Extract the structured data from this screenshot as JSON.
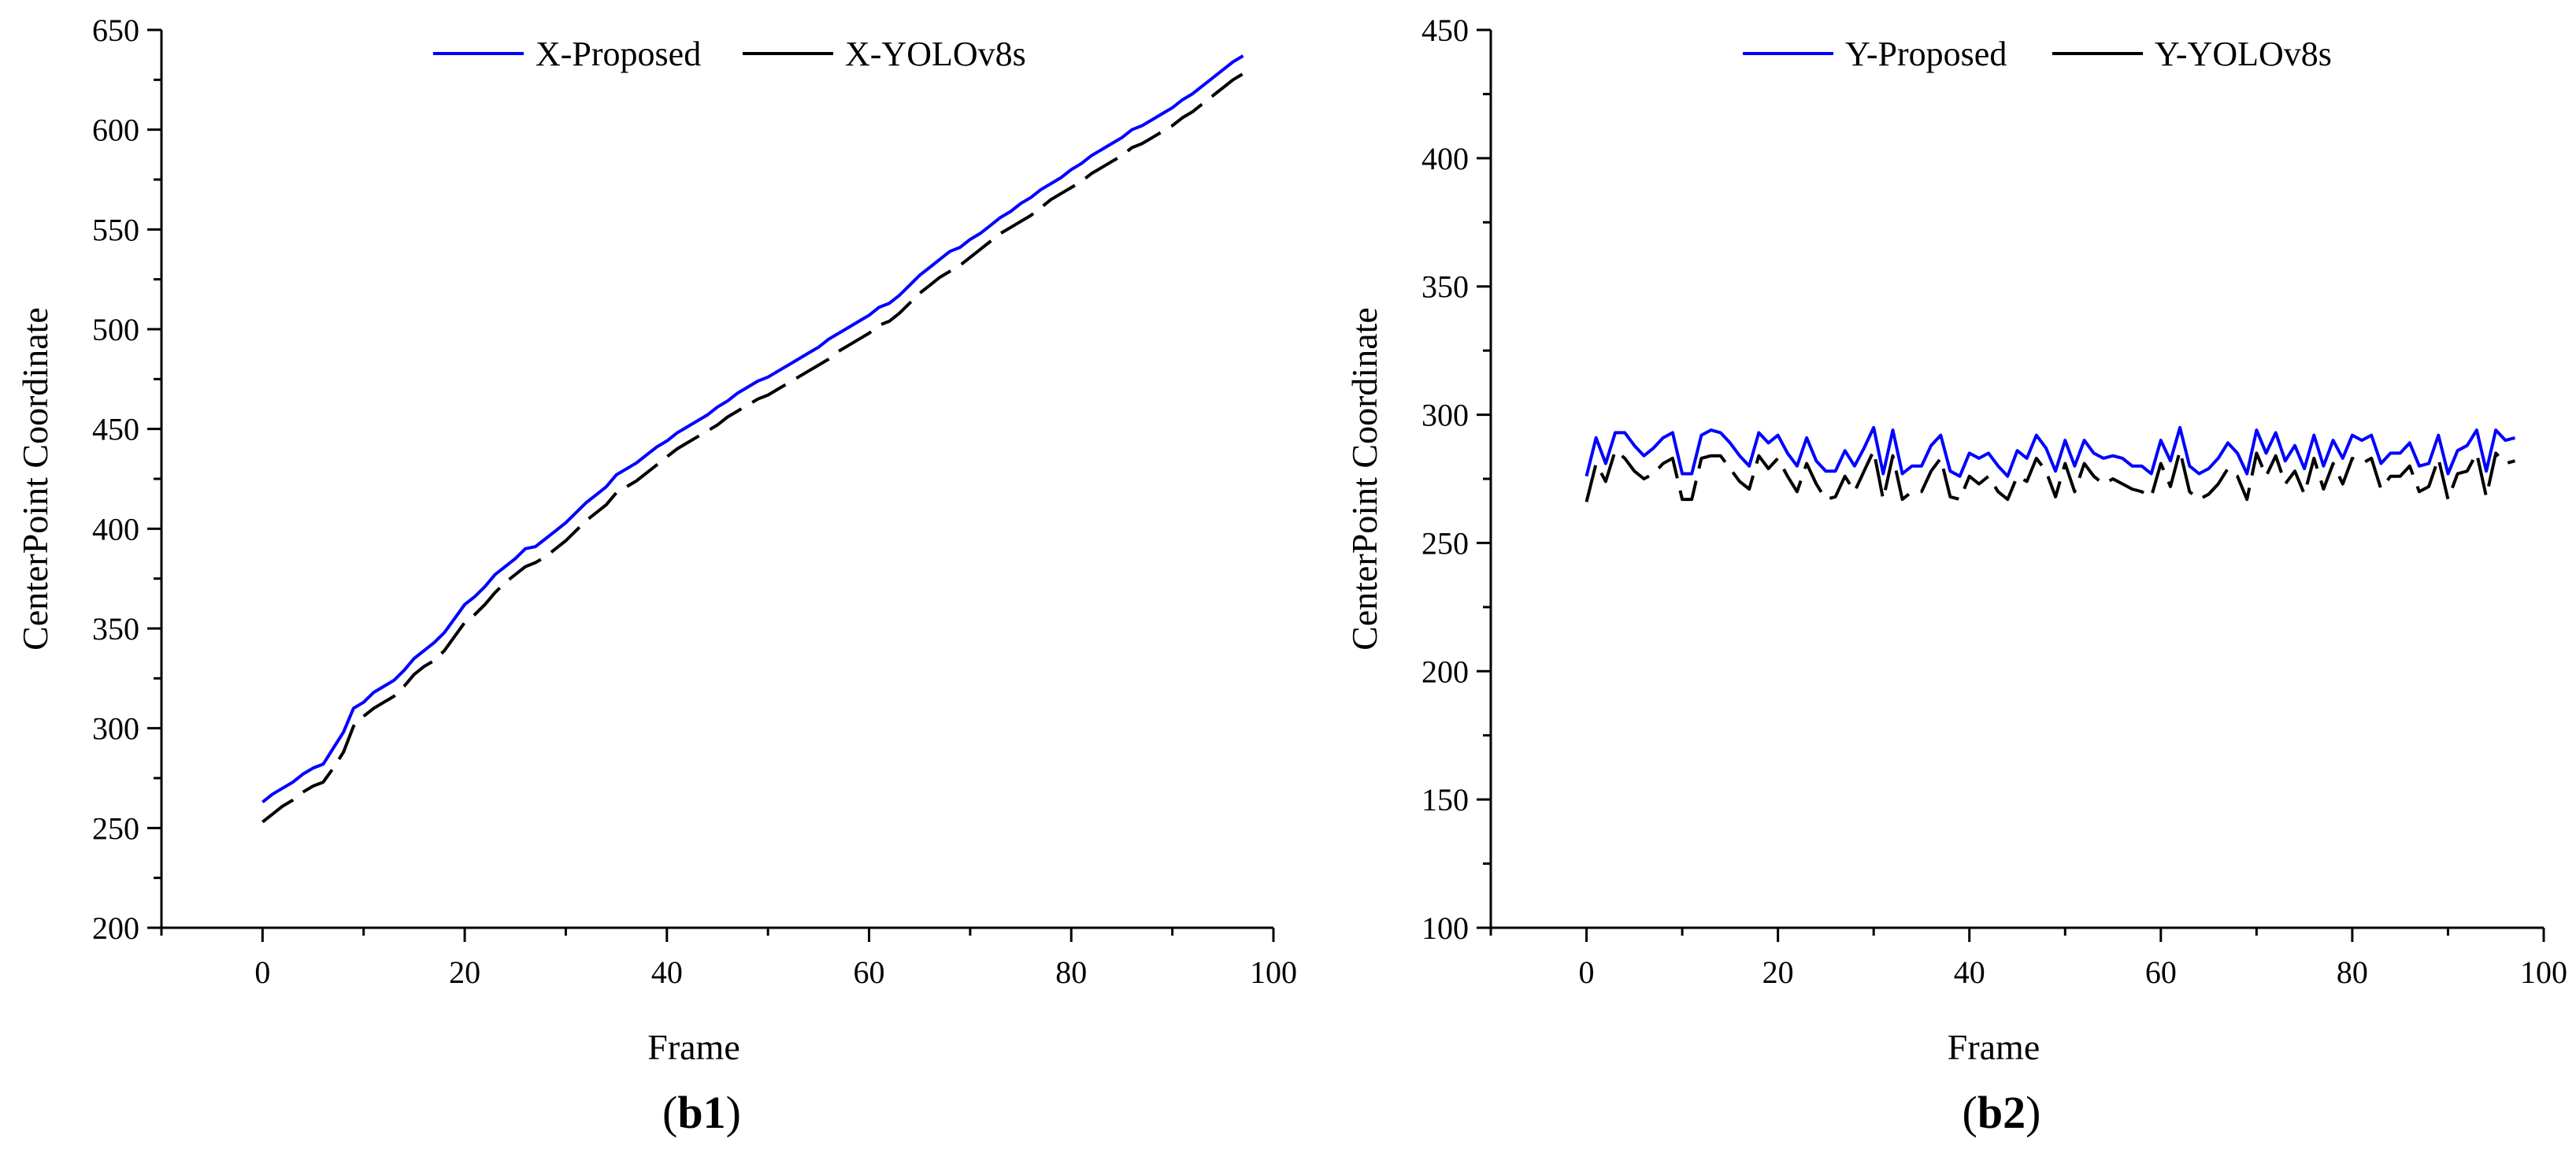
{
  "chart_data": [
    {
      "type": "line",
      "panel_label": {
        "open": "(",
        "bold": "b1",
        "close": ")"
      },
      "xlabel": "Frame",
      "ylabel": "CenterPoint Coordinate",
      "xlim": [
        -10,
        100
      ],
      "ylim": [
        200,
        650
      ],
      "xticks": [
        0,
        20,
        40,
        60,
        80,
        100
      ],
      "yticks": [
        200,
        250,
        300,
        350,
        400,
        450,
        500,
        550,
        600,
        650
      ],
      "grid": false,
      "legend_position": "top-center",
      "series": [
        {
          "name": "X-Proposed",
          "color": "#0000ff",
          "style": "solid",
          "x": [
            0,
            1,
            2,
            3,
            4,
            5,
            6,
            7,
            8,
            9,
            10,
            11,
            12,
            13,
            14,
            15,
            16,
            17,
            18,
            19,
            20,
            21,
            22,
            23,
            24,
            25,
            26,
            27,
            28,
            29,
            30,
            31,
            32,
            33,
            34,
            35,
            36,
            37,
            38,
            39,
            40,
            41,
            42,
            43,
            44,
            45,
            46,
            47,
            48,
            49,
            50,
            51,
            52,
            53,
            54,
            55,
            56,
            57,
            58,
            59,
            60,
            61,
            62,
            63,
            64,
            65,
            66,
            67,
            68,
            69,
            70,
            71,
            72,
            73,
            74,
            75,
            76,
            77,
            78,
            79,
            80,
            81,
            82,
            83,
            84,
            85,
            86,
            87,
            88,
            89,
            90,
            91,
            92,
            93,
            94,
            95,
            96,
            97
          ],
          "values": [
            263,
            267,
            270,
            273,
            277,
            280,
            282,
            290,
            298,
            310,
            313,
            318,
            321,
            324,
            329,
            335,
            339,
            343,
            348,
            355,
            362,
            366,
            371,
            377,
            381,
            385,
            390,
            391,
            395,
            399,
            403,
            408,
            413,
            417,
            421,
            427,
            430,
            433,
            437,
            441,
            444,
            448,
            451,
            454,
            457,
            461,
            464,
            468,
            471,
            474,
            476,
            479,
            482,
            485,
            488,
            491,
            495,
            498,
            501,
            504,
            507,
            511,
            513,
            517,
            522,
            527,
            531,
            535,
            539,
            541,
            545,
            548,
            552,
            556,
            559,
            563,
            566,
            570,
            573,
            576,
            580,
            583,
            587,
            590,
            593,
            596,
            600,
            602,
            605,
            608,
            611,
            615,
            618,
            622,
            626,
            630,
            634,
            637
          ]
        },
        {
          "name": "X-YOLOv8s",
          "color": "#000000",
          "style": "dashed",
          "x": [
            0,
            1,
            2,
            3,
            4,
            5,
            6,
            7,
            8,
            9,
            10,
            11,
            12,
            13,
            14,
            15,
            16,
            17,
            18,
            19,
            20,
            21,
            22,
            23,
            24,
            25,
            26,
            27,
            28,
            29,
            30,
            31,
            32,
            33,
            34,
            35,
            36,
            37,
            38,
            39,
            40,
            41,
            42,
            43,
            44,
            45,
            46,
            47,
            48,
            49,
            50,
            51,
            52,
            53,
            54,
            55,
            56,
            57,
            58,
            59,
            60,
            61,
            62,
            63,
            64,
            65,
            66,
            67,
            68,
            69,
            70,
            71,
            72,
            73,
            74,
            75,
            76,
            77,
            78,
            79,
            80,
            81,
            82,
            83,
            84,
            85,
            86,
            87,
            88,
            89,
            90,
            91,
            92,
            93,
            94,
            95,
            96,
            97
          ],
          "values": [
            253,
            257,
            261,
            264,
            268,
            271,
            273,
            280,
            288,
            301,
            306,
            310,
            313,
            316,
            321,
            327,
            331,
            334,
            339,
            346,
            353,
            357,
            362,
            368,
            373,
            377,
            381,
            383,
            386,
            390,
            394,
            399,
            404,
            408,
            412,
            418,
            421,
            424,
            428,
            432,
            436,
            440,
            443,
            446,
            449,
            452,
            456,
            459,
            462,
            465,
            467,
            470,
            473,
            476,
            479,
            482,
            485,
            489,
            492,
            495,
            498,
            502,
            504,
            508,
            513,
            518,
            522,
            526,
            529,
            532,
            536,
            540,
            544,
            548,
            551,
            554,
            557,
            561,
            565,
            568,
            571,
            574,
            578,
            581,
            584,
            587,
            591,
            593,
            596,
            599,
            602,
            606,
            609,
            613,
            617,
            621,
            625,
            628
          ]
        }
      ]
    },
    {
      "type": "line",
      "panel_label": {
        "open": "(",
        "bold": "b2",
        "close": ")"
      },
      "xlabel": "Frame",
      "ylabel": "CenterPoint Coordinate",
      "xlim": [
        -10,
        100
      ],
      "ylim": [
        100,
        450
      ],
      "xticks": [
        0,
        20,
        40,
        60,
        80,
        100
      ],
      "yticks": [
        100,
        150,
        200,
        250,
        300,
        350,
        400,
        450
      ],
      "grid": false,
      "legend_position": "top-center",
      "series": [
        {
          "name": "Y-Proposed",
          "color": "#0000ff",
          "style": "solid",
          "x": [
            0,
            1,
            2,
            3,
            4,
            5,
            6,
            7,
            8,
            9,
            10,
            11,
            12,
            13,
            14,
            15,
            16,
            17,
            18,
            19,
            20,
            21,
            22,
            23,
            24,
            25,
            26,
            27,
            28,
            29,
            30,
            31,
            32,
            33,
            34,
            35,
            36,
            37,
            38,
            39,
            40,
            41,
            42,
            43,
            44,
            45,
            46,
            47,
            48,
            49,
            50,
            51,
            52,
            53,
            54,
            55,
            56,
            57,
            58,
            59,
            60,
            61,
            62,
            63,
            64,
            65,
            66,
            67,
            68,
            69,
            70,
            71,
            72,
            73,
            74,
            75,
            76,
            77,
            78,
            79,
            80,
            81,
            82,
            83,
            84,
            85,
            86,
            87,
            88,
            89,
            90,
            91,
            92,
            93,
            94,
            95,
            96,
            97
          ],
          "values": [
            276,
            291,
            281,
            293,
            293,
            288,
            284,
            287,
            291,
            293,
            277,
            277,
            292,
            294,
            293,
            289,
            284,
            280,
            293,
            289,
            292,
            285,
            280,
            291,
            282,
            278,
            278,
            286,
            280,
            287,
            295,
            277,
            294,
            277,
            280,
            280,
            288,
            292,
            278,
            276,
            285,
            283,
            285,
            280,
            276,
            286,
            283,
            292,
            287,
            278,
            290,
            280,
            290,
            285,
            283,
            284,
            283,
            280,
            280,
            277,
            290,
            282,
            295,
            280,
            277,
            279,
            283,
            289,
            285,
            277,
            294,
            285,
            293,
            282,
            288,
            279,
            292,
            280,
            290,
            283,
            292,
            290,
            292,
            281,
            285,
            285,
            289,
            280,
            281,
            292,
            277,
            286,
            288,
            294,
            278,
            294,
            290,
            291
          ]
        },
        {
          "name": "Y-YOLOv8s",
          "color": "#000000",
          "style": "dashed",
          "x": [
            0,
            1,
            2,
            3,
            4,
            5,
            6,
            7,
            8,
            9,
            10,
            11,
            12,
            13,
            14,
            15,
            16,
            17,
            18,
            19,
            20,
            21,
            22,
            23,
            24,
            25,
            26,
            27,
            28,
            29,
            30,
            31,
            32,
            33,
            34,
            35,
            36,
            37,
            38,
            39,
            40,
            41,
            42,
            43,
            44,
            45,
            46,
            47,
            48,
            49,
            50,
            51,
            52,
            53,
            54,
            55,
            56,
            57,
            58,
            59,
            60,
            61,
            62,
            63,
            64,
            65,
            66,
            67,
            68,
            69,
            70,
            71,
            72,
            73,
            74,
            75,
            76,
            77,
            78,
            79,
            80,
            81,
            82,
            83,
            84,
            85,
            86,
            87,
            88,
            89,
            90,
            91,
            92,
            93,
            94,
            95,
            96,
            97
          ],
          "values": [
            266,
            281,
            274,
            286,
            283,
            278,
            275,
            277,
            281,
            283,
            267,
            267,
            283,
            284,
            284,
            279,
            274,
            271,
            284,
            279,
            283,
            276,
            270,
            281,
            273,
            267,
            268,
            276,
            270,
            278,
            286,
            267,
            284,
            267,
            270,
            270,
            278,
            283,
            268,
            267,
            276,
            273,
            276,
            270,
            267,
            276,
            274,
            283,
            278,
            268,
            281,
            270,
            281,
            276,
            273,
            275,
            273,
            271,
            270,
            268,
            281,
            272,
            286,
            270,
            267,
            269,
            273,
            279,
            276,
            267,
            285,
            276,
            284,
            273,
            278,
            269,
            283,
            271,
            281,
            273,
            283,
            281,
            283,
            271,
            276,
            276,
            280,
            270,
            272,
            283,
            267,
            277,
            278,
            285,
            268,
            285,
            281,
            282
          ]
        }
      ]
    }
  ]
}
